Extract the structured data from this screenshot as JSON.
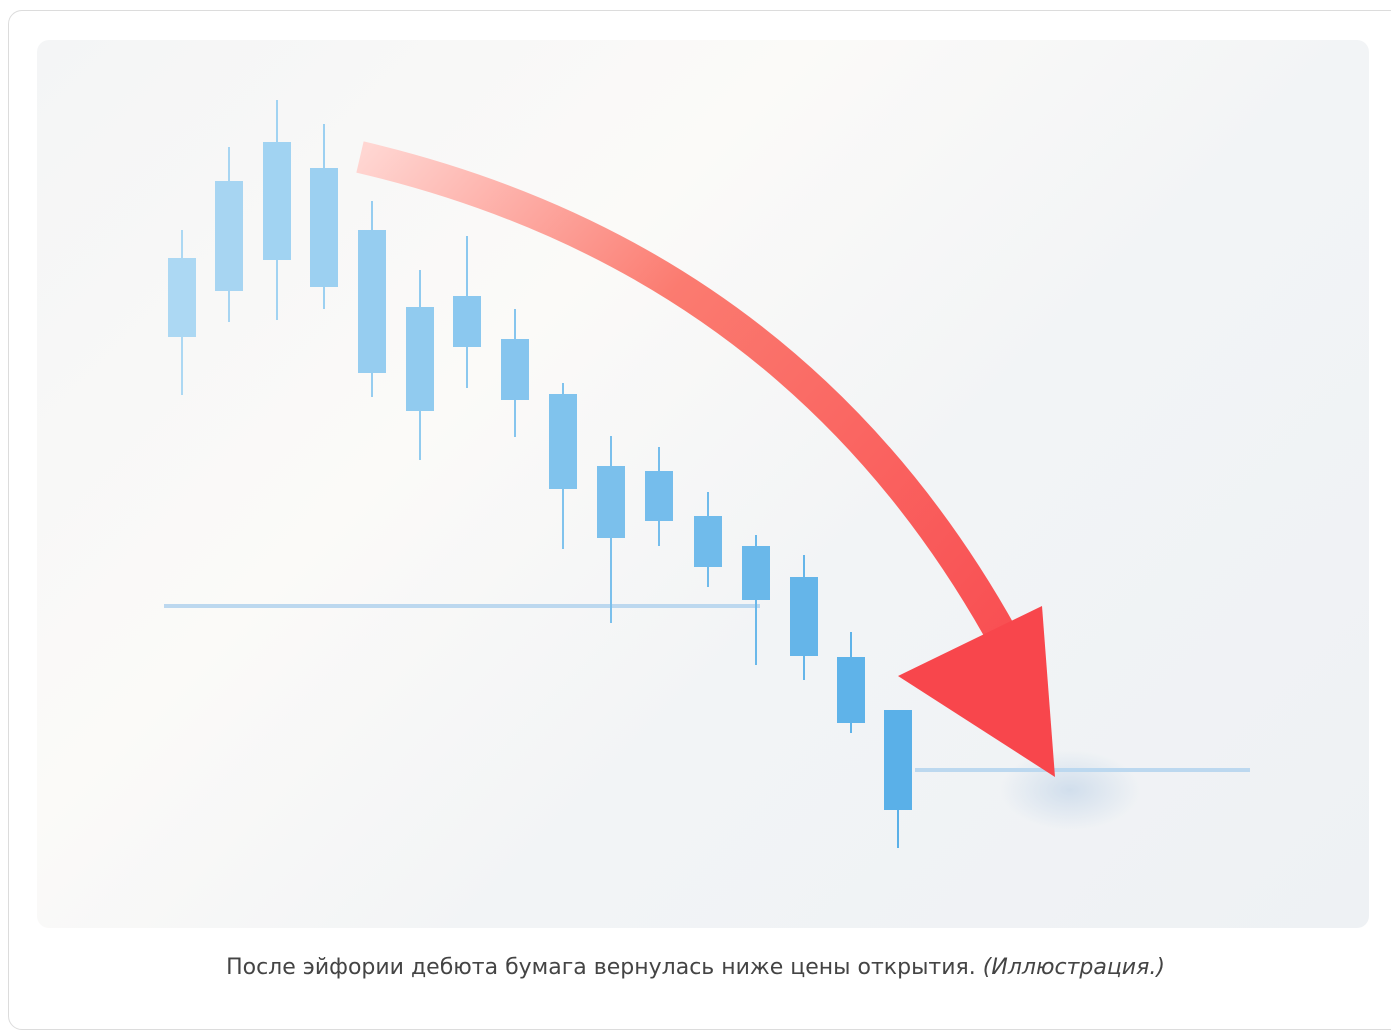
{
  "figure": {
    "caption": "После эйфории дебюта бумага вернулась ниже цены открытия.",
    "caption_note": "(Иллюстрация.)"
  }
}
